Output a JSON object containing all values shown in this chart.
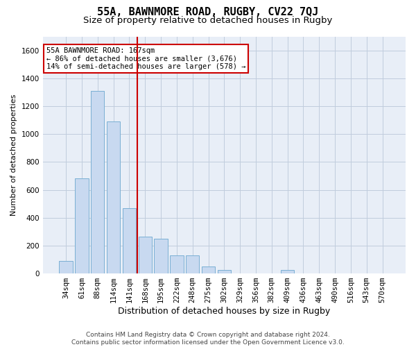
{
  "title": "55A, BAWNMORE ROAD, RUGBY, CV22 7QJ",
  "subtitle": "Size of property relative to detached houses in Rugby",
  "xlabel": "Distribution of detached houses by size in Rugby",
  "ylabel": "Number of detached properties",
  "footer": "Contains HM Land Registry data © Crown copyright and database right 2024.\nContains public sector information licensed under the Open Government Licence v3.0.",
  "categories": [
    "34sqm",
    "61sqm",
    "88sqm",
    "114sqm",
    "141sqm",
    "168sqm",
    "195sqm",
    "222sqm",
    "248sqm",
    "275sqm",
    "302sqm",
    "329sqm",
    "356sqm",
    "382sqm",
    "409sqm",
    "436sqm",
    "463sqm",
    "490sqm",
    "516sqm",
    "543sqm",
    "570sqm"
  ],
  "values": [
    90,
    680,
    1310,
    1090,
    470,
    265,
    250,
    130,
    130,
    50,
    25,
    0,
    0,
    0,
    25,
    0,
    0,
    0,
    0,
    0,
    0
  ],
  "bar_color": "#c8d9f0",
  "bar_edge_color": "#7aafd4",
  "highlight_x": "168sqm",
  "highlight_color": "#cc0000",
  "annotation_text": "55A BAWNMORE ROAD: 167sqm\n← 86% of detached houses are smaller (3,676)\n14% of semi-detached houses are larger (578) →",
  "annotation_box_color": "white",
  "annotation_box_edge_color": "#cc0000",
  "ylim": [
    0,
    1700
  ],
  "yticks": [
    0,
    200,
    400,
    600,
    800,
    1000,
    1200,
    1400,
    1600
  ],
  "grid_color": "#c0ccdd",
  "bg_color": "#e8eef7",
  "title_fontsize": 11,
  "subtitle_fontsize": 9.5,
  "xlabel_fontsize": 9,
  "ylabel_fontsize": 8,
  "tick_fontsize": 7.5,
  "footer_fontsize": 6.5,
  "highlight_idx": 5
}
